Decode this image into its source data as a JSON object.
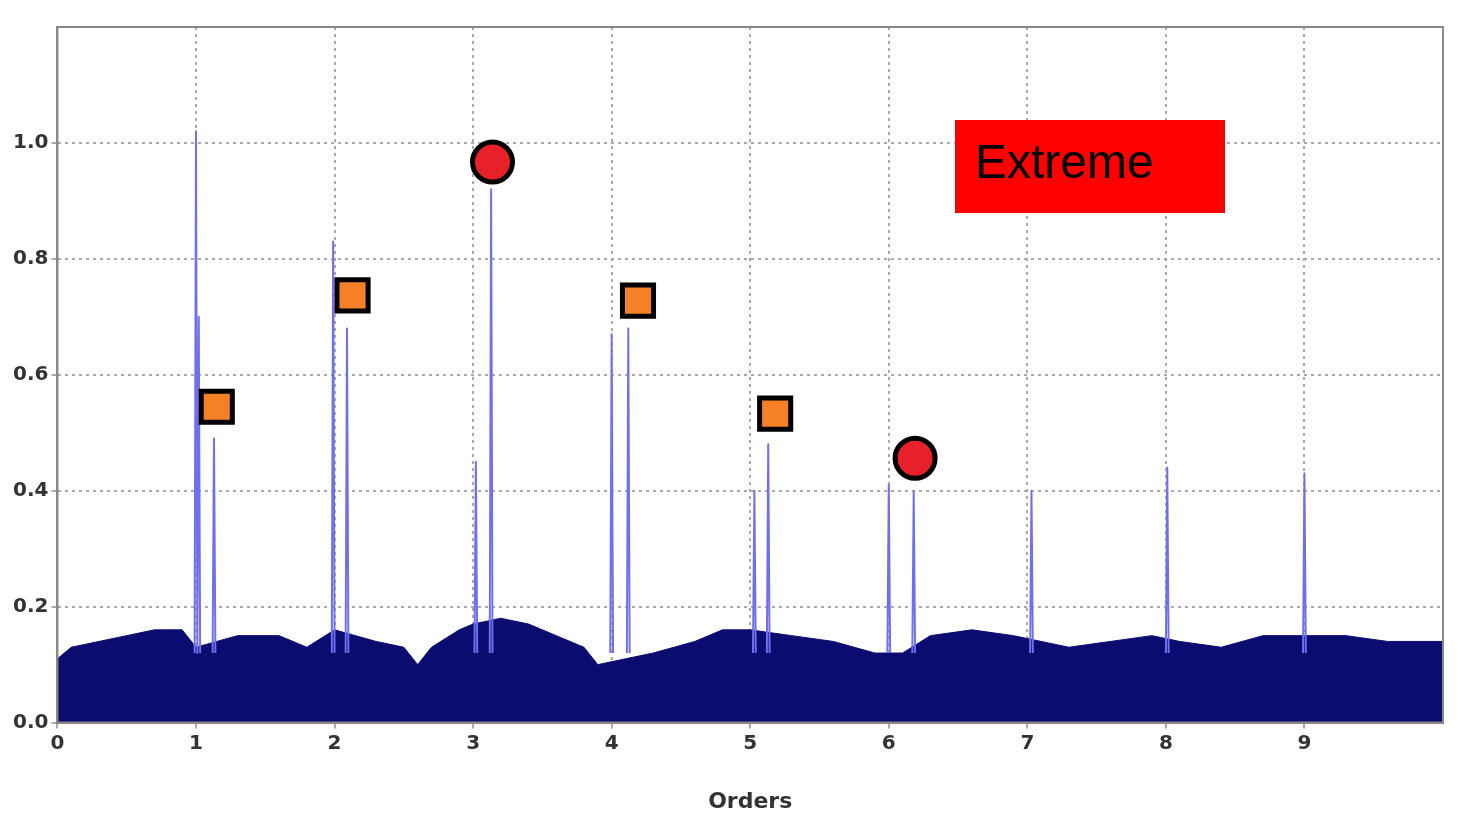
{
  "chart_data": {
    "type": "line",
    "xlabel": "Orders",
    "xlim": [
      0,
      10
    ],
    "ylim": [
      0,
      1.2
    ],
    "xticks": [
      0,
      1,
      2,
      3,
      4,
      5,
      6,
      7,
      8,
      9
    ],
    "yticks": [
      {
        "value": 0,
        "label": "0.0"
      },
      {
        "value": 0.2,
        "label": "0.2"
      },
      {
        "value": 0.4,
        "label": "0.4"
      },
      {
        "value": 0.6,
        "label": "0.6"
      },
      {
        "value": 0.8,
        "label": "0.8"
      },
      {
        "value": 1,
        "label": "1.0"
      }
    ],
    "grid": true,
    "legend": false,
    "annotations": [
      "Extreme"
    ],
    "series": [
      {
        "type": "area",
        "color": "#0b0b70",
        "x": [
          0,
          0.1,
          0.3,
          0.5,
          0.7,
          0.9,
          1.0,
          1.3,
          1.6,
          1.8,
          2.0,
          2.3,
          2.5,
          2.6,
          2.7,
          2.9,
          3.0,
          3.2,
          3.4,
          3.6,
          3.8,
          3.9,
          4.1,
          4.3,
          4.6,
          4.8,
          5.0,
          5.3,
          5.6,
          5.9,
          6.1,
          6.3,
          6.6,
          6.9,
          7.1,
          7.3,
          7.6,
          7.9,
          8.1,
          8.4,
          8.7,
          9.0,
          9.3,
          9.6,
          10.0
        ],
        "values": [
          0.11,
          0.13,
          0.14,
          0.15,
          0.16,
          0.16,
          0.13,
          0.15,
          0.15,
          0.13,
          0.16,
          0.14,
          0.13,
          0.1,
          0.13,
          0.16,
          0.17,
          0.18,
          0.17,
          0.15,
          0.13,
          0.1,
          0.11,
          0.12,
          0.14,
          0.16,
          0.16,
          0.15,
          0.14,
          0.12,
          0.12,
          0.15,
          0.16,
          0.15,
          0.14,
          0.13,
          0.14,
          0.15,
          0.14,
          0.13,
          0.15,
          0.15,
          0.15,
          0.14,
          0.14
        ]
      },
      {
        "color": "#7070ee",
        "marker": "none",
        "x": [
          0.99,
          1.0,
          1.01,
          1.02,
          1.03,
          null,
          1.12,
          1.13,
          1.14,
          null,
          1.98,
          1.99,
          2.0,
          null,
          2.08,
          2.09,
          2.1,
          null,
          3.01,
          3.02,
          3.03,
          null,
          3.12,
          3.13,
          3.14,
          null,
          3.99,
          4.0,
          4.01,
          null,
          4.11,
          4.12,
          4.13,
          null,
          5.02,
          5.03,
          5.04,
          null,
          5.12,
          5.13,
          5.14,
          null,
          5.99,
          6.0,
          6.01,
          null,
          6.17,
          6.18,
          6.19,
          null,
          7.02,
          7.03,
          7.04,
          null,
          8.0,
          8.01,
          8.02,
          null,
          8.99,
          9.0,
          9.01
        ],
        "values": [
          0.12,
          1.02,
          0.12,
          0.7,
          0.12,
          null,
          0.12,
          0.49,
          0.12,
          null,
          0.12,
          0.83,
          0.12,
          null,
          0.12,
          0.68,
          0.12,
          null,
          0.12,
          0.45,
          0.12,
          null,
          0.12,
          0.92,
          0.12,
          null,
          0.12,
          0.67,
          0.12,
          null,
          0.12,
          0.68,
          0.12,
          null,
          0.12,
          0.4,
          0.12,
          null,
          0.12,
          0.48,
          0.12,
          null,
          0.12,
          0.41,
          0.12,
          null,
          0.12,
          0.4,
          0.12,
          null,
          0.12,
          0.4,
          0.12,
          null,
          0.12,
          0.44,
          0.12,
          null,
          0.12,
          0.43,
          0.12
        ]
      },
      {
        "type": "scatter",
        "color": "#f58025",
        "marker": "square",
        "x": [
          1.15,
          2.13,
          4.19,
          5.18
        ],
        "values": [
          0.545,
          0.737,
          0.728,
          0.533
        ]
      },
      {
        "type": "scatter",
        "color": "#e8202a",
        "marker": "circle",
        "x": [
          3.14,
          6.19
        ],
        "values": [
          0.967,
          0.456
        ]
      }
    ]
  }
}
